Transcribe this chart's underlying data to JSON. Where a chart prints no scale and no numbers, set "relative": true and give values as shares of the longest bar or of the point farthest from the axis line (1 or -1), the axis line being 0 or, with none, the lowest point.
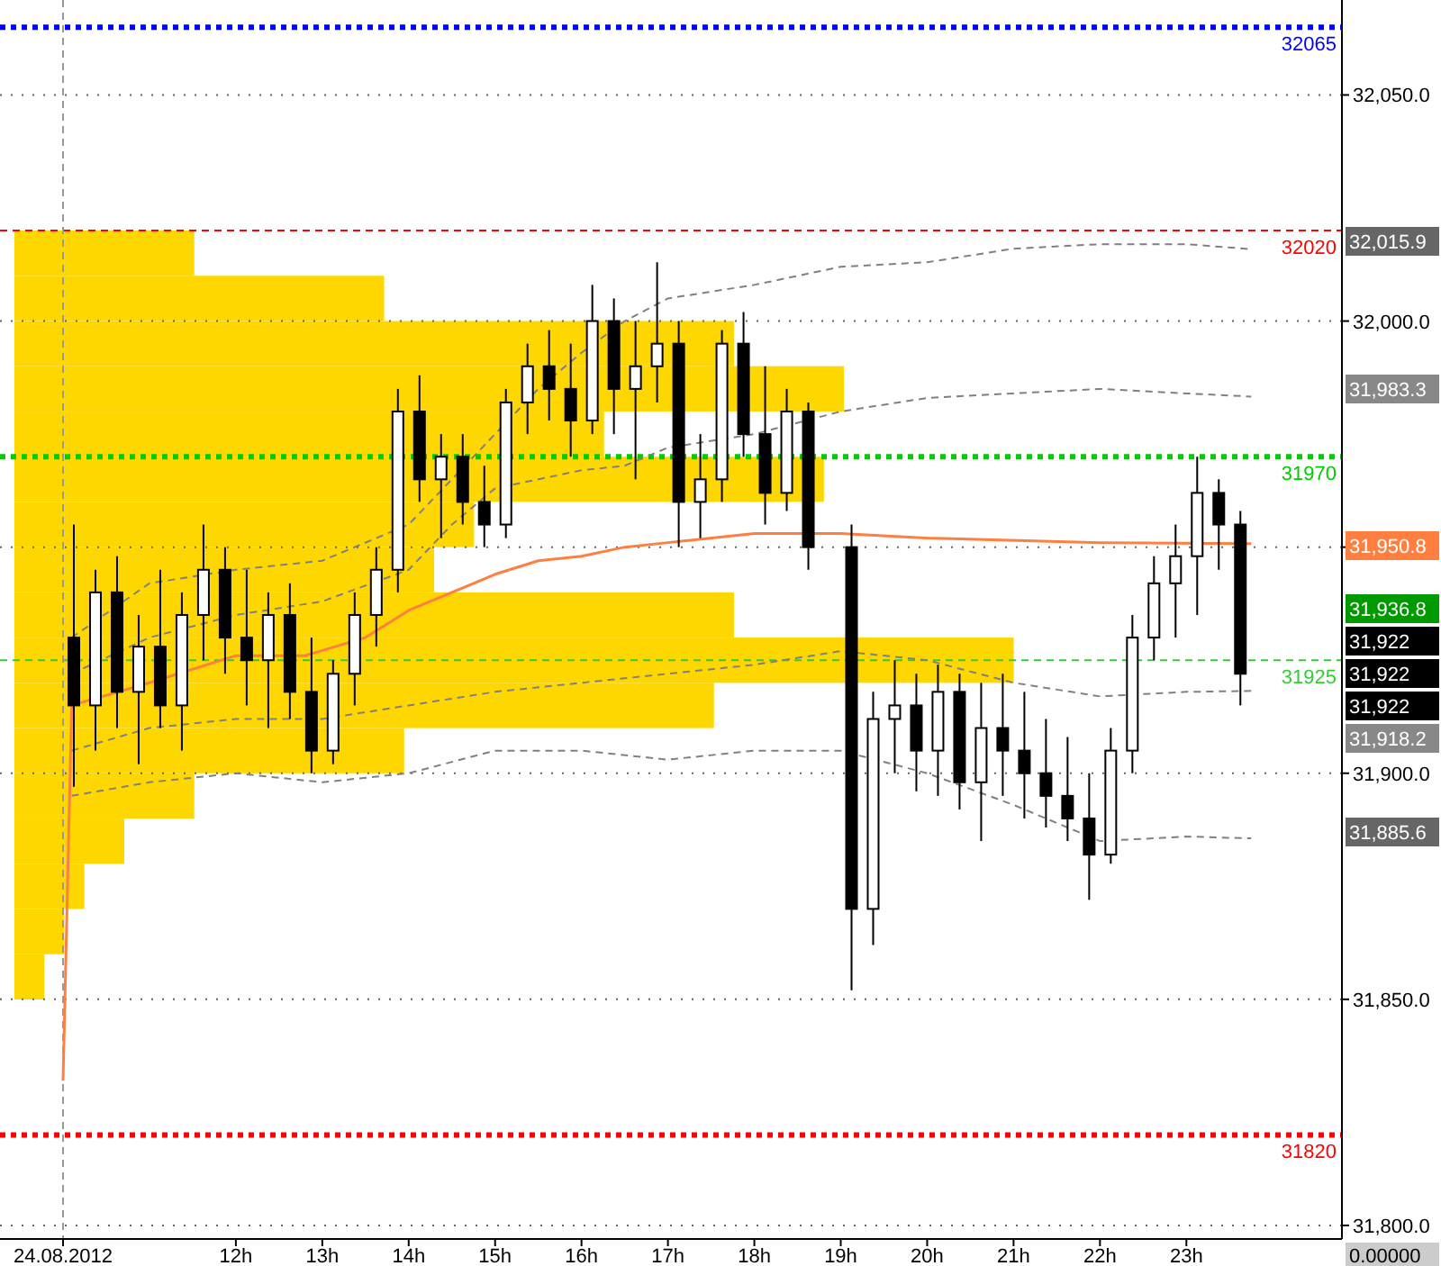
{
  "chart_data": [
    {
      "type": "candlestick",
      "x": [
        10.125,
        10.375,
        10.625,
        10.875,
        11.125,
        11.375,
        11.625,
        11.875,
        12.125,
        12.375,
        12.625,
        12.875,
        13.125,
        13.375,
        13.625,
        13.875,
        14.125,
        14.375,
        14.625,
        14.875,
        15.125,
        15.375,
        15.625,
        15.875,
        16.125,
        16.375,
        16.625,
        16.875,
        17.125,
        17.375,
        17.625,
        17.875,
        18.125,
        18.375,
        18.625,
        19.125,
        19.375,
        19.625,
        19.875,
        20.125,
        20.375,
        20.625,
        20.875,
        21.125,
        21.375,
        21.625,
        21.875,
        22.125,
        22.375,
        22.625,
        22.875,
        23.125,
        23.375,
        23.625
      ],
      "ohlc": [
        [
          31930,
          31955,
          31897,
          31915
        ],
        [
          31915,
          31945,
          31905,
          31940
        ],
        [
          31940,
          31948,
          31910,
          31918
        ],
        [
          31918,
          31935,
          31902,
          31928
        ],
        [
          31928,
          31945,
          31910,
          31915
        ],
        [
          31915,
          31940,
          31905,
          31935
        ],
        [
          31935,
          31955,
          31925,
          31945
        ],
        [
          31945,
          31950,
          31922,
          31930
        ],
        [
          31930,
          31945,
          31915,
          31925
        ],
        [
          31925,
          31940,
          31910,
          31935
        ],
        [
          31935,
          31942,
          31912,
          31918
        ],
        [
          31918,
          31930,
          31900,
          31905
        ],
        [
          31905,
          31925,
          31902,
          31922
        ],
        [
          31922,
          31940,
          31915,
          31935
        ],
        [
          31935,
          31950,
          31928,
          31945
        ],
        [
          31945,
          31985,
          31940,
          31980
        ],
        [
          31980,
          31988,
          31960,
          31965
        ],
        [
          31965,
          31975,
          31952,
          31970
        ],
        [
          31970,
          31975,
          31955,
          31960
        ],
        [
          31960,
          31968,
          31950,
          31955
        ],
        [
          31955,
          31985,
          31952,
          31982
        ],
        [
          31982,
          31995,
          31975,
          31990
        ],
        [
          31990,
          31998,
          31978,
          31985
        ],
        [
          31985,
          31995,
          31970,
          31978
        ],
        [
          31978,
          32008,
          31975,
          32000
        ],
        [
          32000,
          32005,
          31975,
          31985
        ],
        [
          31985,
          32000,
          31965,
          31990
        ],
        [
          31990,
          32013,
          31982,
          31995
        ],
        [
          31995,
          32000,
          31950,
          31960
        ],
        [
          31960,
          31975,
          31952,
          31965
        ],
        [
          31965,
          31998,
          31960,
          31995
        ],
        [
          31995,
          32002,
          31970,
          31975
        ],
        [
          31975,
          31990,
          31955,
          31962
        ],
        [
          31962,
          31985,
          31958,
          31980
        ],
        [
          31980,
          31982,
          31945,
          31950
        ],
        [
          31950,
          31955,
          31852,
          31870
        ],
        [
          31870,
          31918,
          31862,
          31912
        ],
        [
          31912,
          31925,
          31900,
          31915
        ],
        [
          31915,
          31922,
          31896,
          31905
        ],
        [
          31905,
          31924,
          31895,
          31918
        ],
        [
          31918,
          31922,
          31892,
          31898
        ],
        [
          31898,
          31920,
          31885,
          31910
        ],
        [
          31910,
          31922,
          31895,
          31905
        ],
        [
          31905,
          31918,
          31890,
          31900
        ],
        [
          31900,
          31912,
          31888,
          31895
        ],
        [
          31895,
          31908,
          31885,
          31890
        ],
        [
          31890,
          31900,
          31872,
          31882
        ],
        [
          31882,
          31910,
          31880,
          31905
        ],
        [
          31905,
          31935,
          31900,
          31930
        ],
        [
          31930,
          31948,
          31925,
          31942
        ],
        [
          31942,
          31955,
          31930,
          31948
        ],
        [
          31948,
          31970,
          31935,
          31962
        ],
        [
          31962,
          31965,
          31945,
          31955
        ],
        [
          31955,
          31958,
          31915,
          31922
        ]
      ],
      "series": [
        {
          "type": "line",
          "color": "#ff7f40",
          "line_style": "solid",
          "x": [
            10.0,
            10.1,
            11,
            12,
            12.8,
            13.5,
            14,
            14.5,
            15,
            15.5,
            16,
            16.5,
            17,
            18,
            19,
            20,
            22,
            23.75
          ],
          "values": [
            31832,
            31915,
            31920,
            31926,
            31926,
            31930,
            31936,
            31940,
            31944,
            31947,
            31948,
            31950,
            31951,
            31953,
            31953,
            31952,
            31951,
            31950.8
          ]
        },
        {
          "type": "line",
          "color": "#808080",
          "line_style": "dashed",
          "x": [
            10.1,
            11,
            12,
            13,
            14,
            14.5,
            15,
            15.5,
            16,
            16.5,
            17,
            18,
            19,
            20,
            21,
            22,
            23,
            23.75
          ],
          "values": [
            31930,
            31942,
            31945,
            31947,
            31955,
            31965,
            31975,
            31985,
            31993,
            32000,
            32005,
            32008,
            32012,
            32013,
            32016,
            32017,
            32017,
            32015.9
          ]
        },
        {
          "type": "line",
          "color": "#808080",
          "line_style": "dashed",
          "x": [
            10.1,
            11,
            12,
            13,
            14,
            14.5,
            15,
            16,
            16.5,
            17,
            18,
            19,
            20,
            21,
            22,
            23,
            23.75
          ],
          "values": [
            31922,
            31930,
            31935,
            31938,
            31945,
            31955,
            31963,
            31967,
            31968,
            31972,
            31975,
            31980,
            31983,
            31984,
            31985,
            31984,
            31983.3
          ]
        },
        {
          "type": "line",
          "color": "#808080",
          "line_style": "dashed",
          "x": [
            10.1,
            11,
            12,
            13,
            14,
            15,
            16,
            17,
            18,
            19,
            20,
            21,
            22,
            23,
            23.75
          ],
          "values": [
            31905,
            31910,
            31912,
            31912,
            31915,
            31918,
            31920,
            31922,
            31924,
            31927,
            31925,
            31920,
            31917,
            31918,
            31918.2
          ]
        },
        {
          "type": "line",
          "color": "#808080",
          "line_style": "dashed",
          "x": [
            10.1,
            11,
            12,
            13,
            14,
            15,
            16,
            17,
            18,
            19,
            20,
            21,
            22,
            23,
            23.75
          ],
          "values": [
            31895,
            31898,
            31900,
            31898,
            31900,
            31905,
            31905,
            31903,
            31905,
            31905,
            31900,
            31893,
            31885,
            31886,
            31885.6
          ]
        }
      ],
      "xlim": [
        10,
        24.8
      ],
      "xticks": [
        {
          "value": 10,
          "label": "24.08.2012"
        },
        {
          "value": 12,
          "label": "12h"
        },
        {
          "value": 13,
          "label": "13h"
        },
        {
          "value": 14,
          "label": "14h"
        },
        {
          "value": 15,
          "label": "15h"
        },
        {
          "value": 16,
          "label": "16h"
        },
        {
          "value": 17,
          "label": "17h"
        },
        {
          "value": 18,
          "label": "18h"
        },
        {
          "value": 19,
          "label": "19h"
        },
        {
          "value": 20,
          "label": "20h"
        },
        {
          "value": 21,
          "label": "21h"
        },
        {
          "value": 22,
          "label": "22h"
        },
        {
          "value": 23,
          "label": "23h"
        }
      ],
      "ylim": [
        31797,
        32071
      ],
      "yticks": [
        {
          "value": 31800,
          "label": "31,800.0"
        },
        {
          "value": 31850,
          "label": "31,850.0"
        },
        {
          "value": 31900,
          "label": "31,900.0"
        },
        {
          "value": 31950,
          "label": null
        },
        {
          "value": 32000,
          "label": "32,000.0"
        },
        {
          "value": 32050,
          "label": "32,050.0"
        }
      ],
      "grid": "y",
      "ref_lines": [
        {
          "axis": "y",
          "value": 32065,
          "label": "32065",
          "color": "#0000ff",
          "line_style": "dotted"
        },
        {
          "axis": "y",
          "value": 32020,
          "label": "32020",
          "color": "#ff0000",
          "line_style": "dashed"
        },
        {
          "axis": "y",
          "value": 31970,
          "label": "31970",
          "color": "#00cc00",
          "line_style": "dotted"
        },
        {
          "axis": "y",
          "value": 31925,
          "label": "31925",
          "color": "#33cc33",
          "line_style": "dashed"
        },
        {
          "axis": "y",
          "value": 31820,
          "label": "31820",
          "color": "#ff0000",
          "line_style": "dotted"
        },
        {
          "axis": "x",
          "value": 10,
          "color": "#999999",
          "line_style": "dashed"
        }
      ],
      "annotations": [
        "32,015.9",
        "31,983.3",
        "31,950.8",
        "31,936.8",
        "31,922",
        "31,922",
        "31,922",
        "31,918.2",
        "31,885.6",
        "0.00000"
      ]
    },
    {
      "type": "bar",
      "orientation": "horizontal",
      "relative": true,
      "color": "#ffd700",
      "categories": [
        null,
        null,
        null,
        null,
        null,
        null,
        null,
        null,
        null,
        null,
        null,
        null,
        null,
        null,
        null,
        null,
        null
      ],
      "values": [
        0.18,
        0.37,
        0.72,
        0.83,
        0.59,
        0.81,
        0.46,
        0.42,
        0.72,
        1,
        0.7,
        0.39,
        0.18,
        0.11,
        0.07,
        0.05,
        0.03
      ]
    }
  ]
}
